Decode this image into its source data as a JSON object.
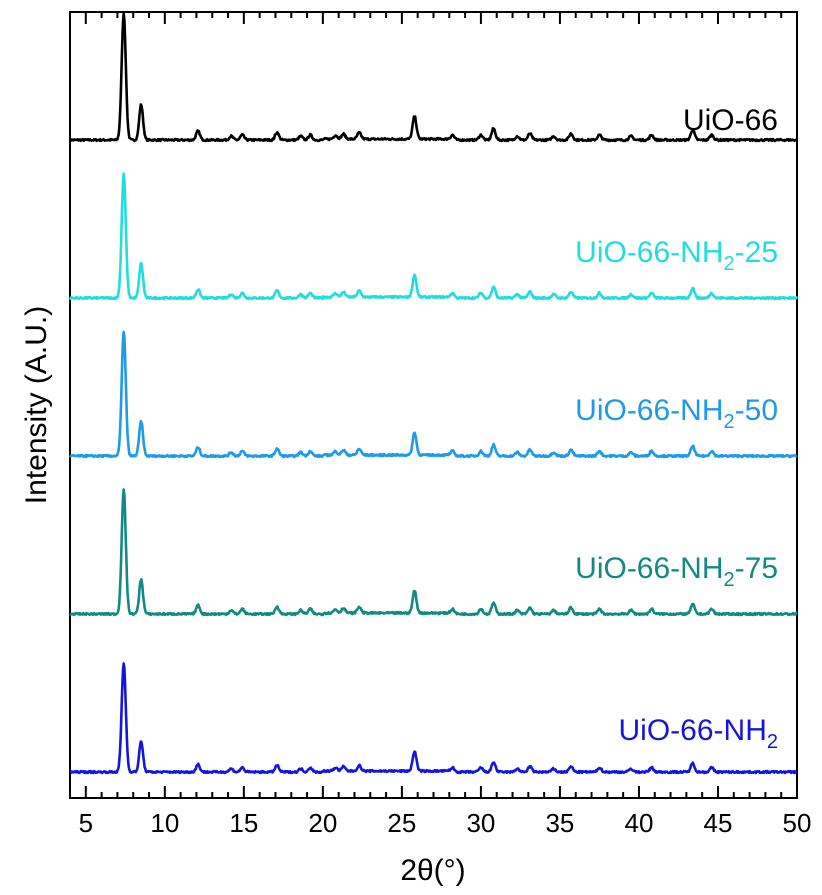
{
  "chart_data": {
    "type": "line",
    "title": "",
    "xlabel": "2θ(°)",
    "ylabel": "Intensity (A.U.)",
    "xlim": [
      4,
      50
    ],
    "x_ticks": [
      5,
      10,
      15,
      20,
      25,
      30,
      35,
      40,
      45,
      50
    ],
    "y_ticks": [],
    "grid": false,
    "legend": "inline-right",
    "peaks": [
      {
        "x": 7.4,
        "h": 1.0
      },
      {
        "x": 8.5,
        "h": 0.28
      },
      {
        "x": 12.1,
        "h": 0.07
      },
      {
        "x": 14.2,
        "h": 0.03
      },
      {
        "x": 14.9,
        "h": 0.04
      },
      {
        "x": 17.1,
        "h": 0.06
      },
      {
        "x": 18.6,
        "h": 0.03
      },
      {
        "x": 19.2,
        "h": 0.04
      },
      {
        "x": 20.8,
        "h": 0.03
      },
      {
        "x": 21.3,
        "h": 0.04
      },
      {
        "x": 22.3,
        "h": 0.05
      },
      {
        "x": 25.8,
        "h": 0.18
      },
      {
        "x": 28.2,
        "h": 0.04
      },
      {
        "x": 30.0,
        "h": 0.04
      },
      {
        "x": 30.8,
        "h": 0.09
      },
      {
        "x": 32.3,
        "h": 0.03
      },
      {
        "x": 33.1,
        "h": 0.05
      },
      {
        "x": 34.6,
        "h": 0.03
      },
      {
        "x": 35.7,
        "h": 0.05
      },
      {
        "x": 37.5,
        "h": 0.04
      },
      {
        "x": 39.5,
        "h": 0.03
      },
      {
        "x": 40.8,
        "h": 0.04
      },
      {
        "x": 43.4,
        "h": 0.08
      },
      {
        "x": 44.6,
        "h": 0.04
      }
    ],
    "series": [
      {
        "label_main": "UiO-66",
        "label_sub": "",
        "label_tail": "",
        "color": "#000000",
        "baseline": 4.6,
        "peak_scale": 1.0
      },
      {
        "label_main": "UiO-66-NH",
        "label_sub": "2",
        "label_tail": "-25",
        "color": "#22DDDD",
        "baseline": 3.6,
        "peak_scale": 0.98
      },
      {
        "label_main": "UiO-66-NH",
        "label_sub": "2",
        "label_tail": "-50",
        "color": "#1E9AE8",
        "baseline": 2.6,
        "peak_scale": 0.98
      },
      {
        "label_main": "UiO-66-NH",
        "label_sub": "2",
        "label_tail": "-75",
        "color": "#128A82",
        "baseline": 1.6,
        "peak_scale": 0.98
      },
      {
        "label_main": "UiO-66-NH",
        "label_sub": "2",
        "label_tail": "",
        "color": "#1515DD",
        "baseline": 0.6,
        "peak_scale": 0.86
      }
    ]
  }
}
